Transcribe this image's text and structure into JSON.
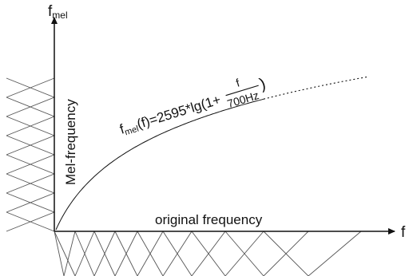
{
  "axes": {
    "y_label_main": "f",
    "y_label_sub": "mel",
    "x_label": "f"
  },
  "labels": {
    "y_axis_text": "Mel-frequency",
    "x_axis_text": "original frequency"
  },
  "formula": {
    "lhs_f": "f",
    "lhs_sub": "mel",
    "lhs_arg": "(f)=2595*lg(1+",
    "frac_num": "f",
    "frac_den": "700Hz",
    "close": ")"
  },
  "colors": {
    "ink": "#111111",
    "filter": "#555555"
  }
}
